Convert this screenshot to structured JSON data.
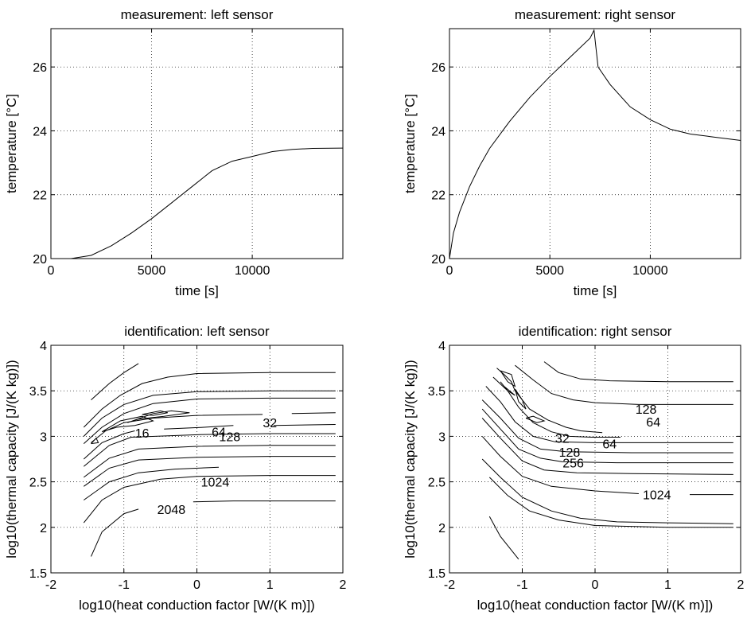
{
  "chart_data": [
    {
      "id": "measurement-left",
      "type": "line",
      "title": "measurement: left sensor",
      "xlabel": "time [s]",
      "ylabel": "temperature [°C]",
      "xlim": [
        0,
        14500
      ],
      "ylim": [
        20,
        27.2
      ],
      "xticks": [
        0,
        5000,
        10000
      ],
      "yticks": [
        20,
        22,
        24,
        26
      ],
      "grid": true,
      "series": [
        {
          "x": [
            1000,
            2000,
            3000,
            4000,
            5000,
            6000,
            7000,
            8000,
            9000,
            10000,
            11000,
            12000,
            13000,
            14500
          ],
          "y": [
            20.0,
            20.1,
            20.4,
            20.8,
            21.25,
            21.75,
            22.25,
            22.75,
            23.05,
            23.2,
            23.35,
            23.42,
            23.45,
            23.46
          ]
        }
      ]
    },
    {
      "id": "measurement-right",
      "type": "line",
      "title": "measurement: right sensor",
      "xlabel": "time [s]",
      "ylabel": "temperature [°C]",
      "xlim": [
        0,
        14500
      ],
      "ylim": [
        20,
        27.2
      ],
      "xticks": [
        0,
        5000,
        10000
      ],
      "yticks": [
        20,
        22,
        24,
        26
      ],
      "grid": true,
      "series": [
        {
          "x": [
            0,
            200,
            500,
            1000,
            1500,
            2000,
            3000,
            4000,
            5000,
            6000,
            7000,
            7200,
            7400,
            8000,
            9000,
            10000,
            11000,
            12000,
            13000,
            14500
          ],
          "y": [
            20.0,
            20.8,
            21.45,
            22.25,
            22.9,
            23.45,
            24.3,
            25.05,
            25.7,
            26.3,
            26.9,
            27.15,
            26.0,
            25.45,
            24.75,
            24.35,
            24.05,
            23.9,
            23.82,
            23.7
          ]
        }
      ]
    },
    {
      "id": "identification-left",
      "type": "contour",
      "title": "identification: left sensor",
      "xlabel": "log10(heat conduction factor [W/(K m)])",
      "ylabel": "log10(thermal capacity [J/(K kg)])",
      "xlim": [
        -2,
        2
      ],
      "ylim": [
        1.5,
        4
      ],
      "xticks": [
        -2,
        -1,
        0,
        1,
        2
      ],
      "yticks": [
        1.5,
        2,
        2.5,
        3,
        3.5,
        4
      ],
      "grid": true,
      "contour_labels": [
        {
          "text": "16",
          "x": -0.75,
          "y": 3.04
        },
        {
          "text": "64",
          "x": 0.3,
          "y": 3.05
        },
        {
          "text": "128",
          "x": 0.45,
          "y": 3.0
        },
        {
          "text": "32",
          "x": 1.0,
          "y": 3.15
        },
        {
          "text": "1024",
          "x": 0.25,
          "y": 2.5
        },
        {
          "text": "2048",
          "x": -0.35,
          "y": 2.2
        }
      ],
      "lines": [
        [
          [
            -1.45,
            3.4
          ],
          [
            -1.2,
            3.58
          ],
          [
            -1.0,
            3.7
          ],
          [
            -0.8,
            3.8
          ]
        ],
        [
          [
            -1.55,
            3.1
          ],
          [
            -1.3,
            3.3
          ],
          [
            -1.05,
            3.45
          ],
          [
            -0.75,
            3.58
          ],
          [
            -0.4,
            3.65
          ],
          [
            0,
            3.69
          ],
          [
            1,
            3.7
          ],
          [
            1.9,
            3.7
          ]
        ],
        [
          [
            -1.55,
            3.0
          ],
          [
            -1.3,
            3.2
          ],
          [
            -1.0,
            3.35
          ],
          [
            -0.6,
            3.45
          ],
          [
            0,
            3.49
          ],
          [
            1,
            3.5
          ],
          [
            1.9,
            3.5
          ]
        ],
        [
          [
            -1.55,
            2.92
          ],
          [
            -1.3,
            3.1
          ],
          [
            -1.0,
            3.25
          ],
          [
            -0.6,
            3.36
          ],
          [
            0,
            3.41
          ],
          [
            1,
            3.42
          ],
          [
            1.9,
            3.42
          ]
        ],
        [
          [
            -1.45,
            2.93
          ],
          [
            -1.25,
            3.06
          ],
          [
            -1.0,
            3.15
          ],
          [
            -0.6,
            3.2
          ],
          [
            0,
            3.23
          ],
          [
            0.9,
            3.24
          ]
        ],
        [
          [
            1.3,
            3.25
          ],
          [
            1.9,
            3.26
          ]
        ],
        [
          [
            -1.55,
            2.75
          ],
          [
            -1.3,
            2.93
          ],
          [
            -1.0,
            3.03
          ],
          [
            -0.85,
            3.06
          ]
        ],
        [
          [
            -0.45,
            3.08
          ],
          [
            0.1,
            3.1
          ],
          [
            0.5,
            3.12
          ]
        ],
        [
          [
            1.05,
            3.12
          ],
          [
            1.9,
            3.13
          ]
        ],
        [
          [
            -1.55,
            2.67
          ],
          [
            -1.2,
            2.9
          ],
          [
            -0.9,
            2.99
          ],
          [
            0.1,
            3.02
          ],
          [
            1.0,
            3.03
          ],
          [
            1.9,
            3.03
          ]
        ],
        [
          [
            -1.55,
            2.55
          ],
          [
            -1.2,
            2.76
          ],
          [
            -0.8,
            2.86
          ],
          [
            0,
            2.89
          ],
          [
            1,
            2.9
          ],
          [
            1.9,
            2.9
          ]
        ],
        [
          [
            -1.55,
            2.45
          ],
          [
            -1.2,
            2.65
          ],
          [
            -0.8,
            2.74
          ],
          [
            0,
            2.77
          ],
          [
            1,
            2.78
          ],
          [
            1.9,
            2.78
          ]
        ],
        [
          [
            -1.55,
            2.3
          ],
          [
            -1.2,
            2.5
          ],
          [
            -0.8,
            2.6
          ],
          [
            -0.3,
            2.64
          ],
          [
            0.3,
            2.66
          ]
        ],
        [
          [
            -1.55,
            2.05
          ],
          [
            -1.3,
            2.3
          ],
          [
            -1.0,
            2.44
          ],
          [
            -0.5,
            2.53
          ],
          [
            0,
            2.56
          ],
          [
            1,
            2.57
          ],
          [
            1.9,
            2.57
          ]
        ],
        [
          [
            -1.45,
            1.68
          ],
          [
            -1.3,
            1.95
          ],
          [
            -1.0,
            2.15
          ],
          [
            -0.8,
            2.2
          ]
        ],
        [
          [
            -0.05,
            2.28
          ],
          [
            0.5,
            2.29
          ],
          [
            1.9,
            2.29
          ]
        ],
        [
          [
            -1.3,
            3.05
          ],
          [
            -1.05,
            3.17
          ],
          [
            -0.75,
            3.22
          ],
          [
            -0.6,
            3.17
          ],
          [
            -0.85,
            3.12
          ],
          [
            -1.1,
            3.1
          ],
          [
            -1.3,
            3.05
          ]
        ],
        [
          [
            -0.95,
            3.15
          ],
          [
            -0.6,
            3.25
          ],
          [
            -0.35,
            3.28
          ],
          [
            -0.1,
            3.26
          ],
          [
            -0.45,
            3.22
          ],
          [
            -0.8,
            3.19
          ],
          [
            -0.95,
            3.15
          ]
        ],
        [
          [
            -0.75,
            3.24
          ],
          [
            -0.5,
            3.28
          ],
          [
            -0.4,
            3.26
          ],
          [
            -0.6,
            3.23
          ],
          [
            -0.75,
            3.24
          ]
        ],
        [
          [
            -1.45,
            2.92
          ],
          [
            -1.38,
            2.98
          ],
          [
            -1.35,
            2.93
          ],
          [
            -1.45,
            2.92
          ]
        ]
      ]
    },
    {
      "id": "identification-right",
      "type": "contour",
      "title": "identification: right sensor",
      "xlabel": "log10(heat conduction factor [W/(K m)])",
      "ylabel": "log10(thermal capacity [J/(K kg)])",
      "xlim": [
        -2,
        2
      ],
      "ylim": [
        1.5,
        4
      ],
      "xticks": [
        -2,
        -1,
        0,
        1,
        2
      ],
      "yticks": [
        1.5,
        2,
        2.5,
        3,
        3.5,
        4
      ],
      "grid": true,
      "contour_labels": [
        {
          "text": "128",
          "x": 0.7,
          "y": 3.3
        },
        {
          "text": "64",
          "x": 0.8,
          "y": 3.16
        },
        {
          "text": "32",
          "x": -0.45,
          "y": 2.98
        },
        {
          "text": "64",
          "x": 0.2,
          "y": 2.92
        },
        {
          "text": "128",
          "x": -0.35,
          "y": 2.83
        },
        {
          "text": "256",
          "x": -0.3,
          "y": 2.71
        },
        {
          "text": "1024",
          "x": 0.85,
          "y": 2.36
        }
      ],
      "lines": [
        [
          [
            -1.1,
            3.78
          ],
          [
            -0.85,
            3.62
          ],
          [
            -0.6,
            3.47
          ],
          [
            -0.3,
            3.4
          ],
          [
            0,
            3.37
          ],
          [
            0.6,
            3.35
          ],
          [
            1.9,
            3.35
          ]
        ],
        [
          [
            -0.7,
            3.82
          ],
          [
            -0.5,
            3.7
          ],
          [
            -0.2,
            3.63
          ],
          [
            0.2,
            3.61
          ],
          [
            1.0,
            3.6
          ],
          [
            1.9,
            3.6
          ]
        ],
        [
          [
            -1.35,
            3.75
          ],
          [
            -1.25,
            3.68
          ],
          [
            -1.15,
            3.6
          ],
          [
            -1.1,
            3.5
          ],
          [
            -0.9,
            3.3
          ],
          [
            -0.65,
            3.18
          ],
          [
            -0.4,
            3.1
          ],
          [
            -0.2,
            3.06
          ],
          [
            0.1,
            3.04
          ]
        ],
        [
          [
            -1.4,
            3.65
          ],
          [
            -1.2,
            3.5
          ],
          [
            -1.05,
            3.32
          ],
          [
            -0.85,
            3.15
          ],
          [
            -0.6,
            3.05
          ],
          [
            -0.35,
            3.0
          ],
          [
            -0.05,
            2.99
          ],
          [
            0.35,
            2.99
          ]
        ],
        [
          [
            -1.5,
            3.55
          ],
          [
            -1.3,
            3.38
          ],
          [
            -1.1,
            3.16
          ],
          [
            -0.85,
            3.0
          ],
          [
            -0.55,
            2.94
          ],
          [
            0,
            2.93
          ],
          [
            1.9,
            2.93
          ]
        ],
        [
          [
            -1.55,
            3.4
          ],
          [
            -1.3,
            3.2
          ],
          [
            -1.05,
            2.98
          ],
          [
            -0.75,
            2.86
          ],
          [
            -0.4,
            2.83
          ],
          [
            0.5,
            2.82
          ],
          [
            1.9,
            2.82
          ]
        ],
        [
          [
            -1.55,
            3.3
          ],
          [
            -1.3,
            3.08
          ],
          [
            -1.05,
            2.86
          ],
          [
            -0.75,
            2.76
          ],
          [
            -0.45,
            2.72
          ],
          [
            0.3,
            2.71
          ],
          [
            1.9,
            2.71
          ]
        ],
        [
          [
            -1.55,
            3.2
          ],
          [
            -1.3,
            2.98
          ],
          [
            -1.0,
            2.73
          ],
          [
            -0.7,
            2.63
          ],
          [
            -0.25,
            2.6
          ],
          [
            0.5,
            2.59
          ],
          [
            1.9,
            2.58
          ]
        ],
        [
          [
            -1.55,
            3.0
          ],
          [
            -1.3,
            2.78
          ],
          [
            -1.0,
            2.56
          ],
          [
            -0.6,
            2.45
          ],
          [
            0,
            2.4
          ],
          [
            0.6,
            2.37
          ]
        ],
        [
          [
            1.3,
            2.36
          ],
          [
            1.9,
            2.36
          ]
        ],
        [
          [
            -1.55,
            2.75
          ],
          [
            -1.3,
            2.55
          ],
          [
            -1.0,
            2.33
          ],
          [
            -0.6,
            2.18
          ],
          [
            -0.2,
            2.1
          ],
          [
            0.3,
            2.06
          ],
          [
            1.0,
            2.05
          ],
          [
            1.9,
            2.04
          ]
        ],
        [
          [
            -1.45,
            2.55
          ],
          [
            -1.2,
            2.35
          ],
          [
            -0.9,
            2.18
          ],
          [
            -0.5,
            2.08
          ],
          [
            0,
            2.02
          ],
          [
            1,
            2.0
          ],
          [
            1.9,
            2.0
          ]
        ],
        [
          [
            -1.45,
            2.12
          ],
          [
            -1.3,
            1.9
          ],
          [
            -1.15,
            1.75
          ],
          [
            -1.05,
            1.65
          ]
        ],
        [
          [
            -1.3,
            3.72
          ],
          [
            -1.15,
            3.68
          ],
          [
            -1.1,
            3.55
          ],
          [
            -1.2,
            3.6
          ],
          [
            -1.3,
            3.72
          ]
        ],
        [
          [
            -1.1,
            3.52
          ],
          [
            -1.0,
            3.4
          ],
          [
            -0.95,
            3.3
          ],
          [
            -1.05,
            3.38
          ],
          [
            -1.1,
            3.52
          ]
        ],
        [
          [
            -0.95,
            3.2
          ],
          [
            -0.8,
            3.15
          ],
          [
            -0.7,
            3.17
          ],
          [
            -0.85,
            3.22
          ],
          [
            -0.95,
            3.2
          ]
        ],
        [
          [
            -1.3,
            3.6
          ],
          [
            -1.2,
            3.5
          ],
          [
            -1.1,
            3.45
          ],
          [
            -1.25,
            3.55
          ],
          [
            -1.3,
            3.6
          ]
        ]
      ]
    }
  ]
}
